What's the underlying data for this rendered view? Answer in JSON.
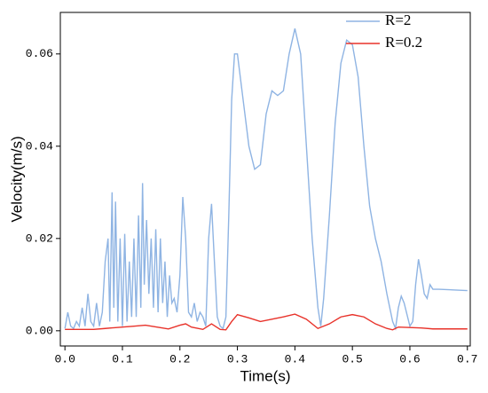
{
  "chart_data": {
    "type": "line",
    "x_label": "Time(s)",
    "y_label": "Velocity(m/s)",
    "xlim": [
      -0.008,
      0.705
    ],
    "ylim": [
      -0.0033,
      0.069
    ],
    "xticks": [
      {
        "value": 0,
        "label": "0.0"
      },
      0.1,
      0.2,
      0.3,
      0.4,
      0.5,
      0.6,
      0.7
    ],
    "yticks": [
      {
        "value": 0,
        "label": "0.00"
      },
      {
        "value": 0.02,
        "label": "0.02"
      },
      {
        "value": 0.04,
        "label": "0.04"
      },
      {
        "value": 0.06,
        "label": "0.06"
      }
    ],
    "legend": "upper right",
    "series": [
      {
        "name": "R=2",
        "color": "#8fb4e3",
        "x": [
          0.0,
          0.005,
          0.01,
          0.015,
          0.02,
          0.025,
          0.03,
          0.035,
          0.04,
          0.045,
          0.05,
          0.055,
          0.06,
          0.065,
          0.07,
          0.075,
          0.078,
          0.082,
          0.085,
          0.088,
          0.092,
          0.096,
          0.1,
          0.104,
          0.108,
          0.112,
          0.116,
          0.12,
          0.124,
          0.128,
          0.132,
          0.135,
          0.138,
          0.142,
          0.146,
          0.15,
          0.154,
          0.158,
          0.162,
          0.166,
          0.17,
          0.174,
          0.178,
          0.182,
          0.186,
          0.19,
          0.195,
          0.2,
          0.205,
          0.21,
          0.215,
          0.22,
          0.225,
          0.23,
          0.235,
          0.24,
          0.245,
          0.25,
          0.255,
          0.26,
          0.265,
          0.27,
          0.275,
          0.28,
          0.285,
          0.29,
          0.295,
          0.3,
          0.31,
          0.32,
          0.33,
          0.34,
          0.35,
          0.36,
          0.37,
          0.38,
          0.39,
          0.4,
          0.41,
          0.42,
          0.43,
          0.44,
          0.445,
          0.45,
          0.46,
          0.47,
          0.48,
          0.49,
          0.5,
          0.51,
          0.52,
          0.53,
          0.54,
          0.55,
          0.56,
          0.57,
          0.575,
          0.58,
          0.585,
          0.59,
          0.6,
          0.605,
          0.61,
          0.615,
          0.62,
          0.625,
          0.63,
          0.635,
          0.64,
          0.65,
          0.7
        ],
        "values": [
          0.0005,
          0.004,
          0.001,
          0.0005,
          0.002,
          0.001,
          0.005,
          0.001,
          0.008,
          0.002,
          0.001,
          0.006,
          0.001,
          0.004,
          0.015,
          0.02,
          0.002,
          0.03,
          0.005,
          0.028,
          0.002,
          0.02,
          0.001,
          0.021,
          0.002,
          0.015,
          0.003,
          0.02,
          0.003,
          0.025,
          0.005,
          0.032,
          0.01,
          0.024,
          0.008,
          0.02,
          0.005,
          0.022,
          0.004,
          0.02,
          0.006,
          0.015,
          0.003,
          0.012,
          0.006,
          0.007,
          0.004,
          0.012,
          0.029,
          0.02,
          0.004,
          0.003,
          0.006,
          0.002,
          0.004,
          0.003,
          0.001,
          0.02,
          0.0275,
          0.015,
          0.003,
          0.001,
          0.0005,
          0.003,
          0.025,
          0.05,
          0.06,
          0.06,
          0.05,
          0.04,
          0.035,
          0.036,
          0.047,
          0.052,
          0.051,
          0.052,
          0.06,
          0.0655,
          0.06,
          0.04,
          0.02,
          0.005,
          0.001,
          0.007,
          0.025,
          0.045,
          0.058,
          0.063,
          0.062,
          0.055,
          0.04,
          0.027,
          0.02,
          0.015,
          0.008,
          0.002,
          0.0005,
          0.005,
          0.0075,
          0.006,
          0.001,
          0.002,
          0.01,
          0.0155,
          0.012,
          0.008,
          0.007,
          0.01,
          0.009,
          0.009,
          0.0087
        ]
      },
      {
        "name": "R=0.2",
        "color": "#e8322a",
        "x": [
          0,
          0.05,
          0.07,
          0.1,
          0.12,
          0.14,
          0.16,
          0.18,
          0.2,
          0.21,
          0.22,
          0.24,
          0.255,
          0.27,
          0.28,
          0.29,
          0.3,
          0.32,
          0.34,
          0.36,
          0.38,
          0.4,
          0.42,
          0.44,
          0.46,
          0.48,
          0.5,
          0.52,
          0.54,
          0.56,
          0.57,
          0.58,
          0.6,
          0.62,
          0.64,
          0.7
        ],
        "values": [
          0.0003,
          0.0003,
          0.0005,
          0.0008,
          0.001,
          0.0012,
          0.0008,
          0.0004,
          0.0012,
          0.0015,
          0.0008,
          0.0003,
          0.0015,
          0.0003,
          0.0002,
          0.002,
          0.0035,
          0.0028,
          0.002,
          0.0025,
          0.003,
          0.0036,
          0.0025,
          0.0005,
          0.0015,
          0.003,
          0.0035,
          0.003,
          0.0015,
          0.0005,
          0.0002,
          0.0008,
          0.0007,
          0.0006,
          0.0004,
          0.0004
        ]
      }
    ]
  }
}
